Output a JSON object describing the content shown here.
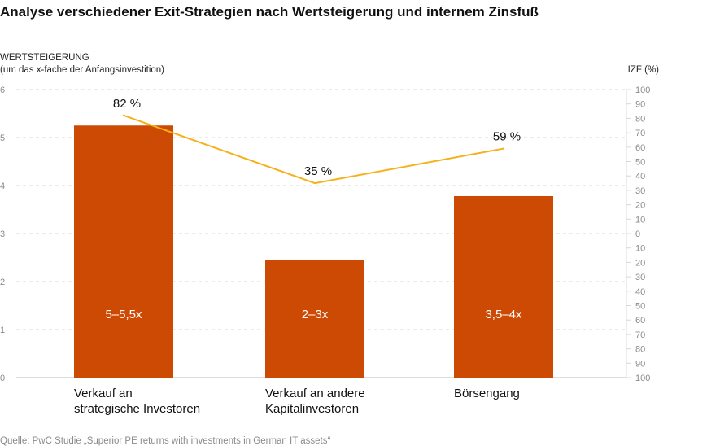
{
  "chart_data": {
    "type": "bar",
    "title": "Analyse verschiedener Exit-Strategien nach Wertsteigerung und internem Zinsfuß",
    "ylabel_line1": "WERTSTEIGERUNG",
    "ylabel_line2": "(um das x-fache der Anfangsinvestition)",
    "y2label": "IZF (%)",
    "ylim": [
      0,
      6
    ],
    "y_ticks": [
      "0",
      "1",
      "2",
      "3",
      "4",
      "5",
      "6"
    ],
    "y2lim": [
      -100,
      100
    ],
    "y2_ticks": [
      "100",
      "90",
      "80",
      "70",
      "60",
      "50",
      "40",
      "30",
      "20",
      "10",
      "0",
      "10",
      "20",
      "30",
      "40",
      "50",
      "60",
      "70",
      "80",
      "90",
      "100"
    ],
    "categories": [
      [
        "Verkauf an",
        "strategische Investoren"
      ],
      [
        "Verkauf an andere",
        "Kapitalinvestoren"
      ],
      [
        "Börsengang"
      ]
    ],
    "series": [
      {
        "name": "Wertsteigerung",
        "type": "bar",
        "color": "#cc4a03",
        "values": [
          5.25,
          2.45,
          3.78
        ],
        "labels": [
          "5–5,5x",
          "2–3x",
          "3,5–4x"
        ]
      },
      {
        "name": "IZF",
        "type": "line",
        "axis": "right",
        "color": "#f5b01a",
        "values": [
          82,
          35,
          59
        ],
        "labels": [
          "82 %",
          "35 %",
          "59 %"
        ]
      }
    ],
    "grid": true,
    "source": "Quelle: PwC Studie „Superior PE returns with investments in German IT assets“"
  }
}
